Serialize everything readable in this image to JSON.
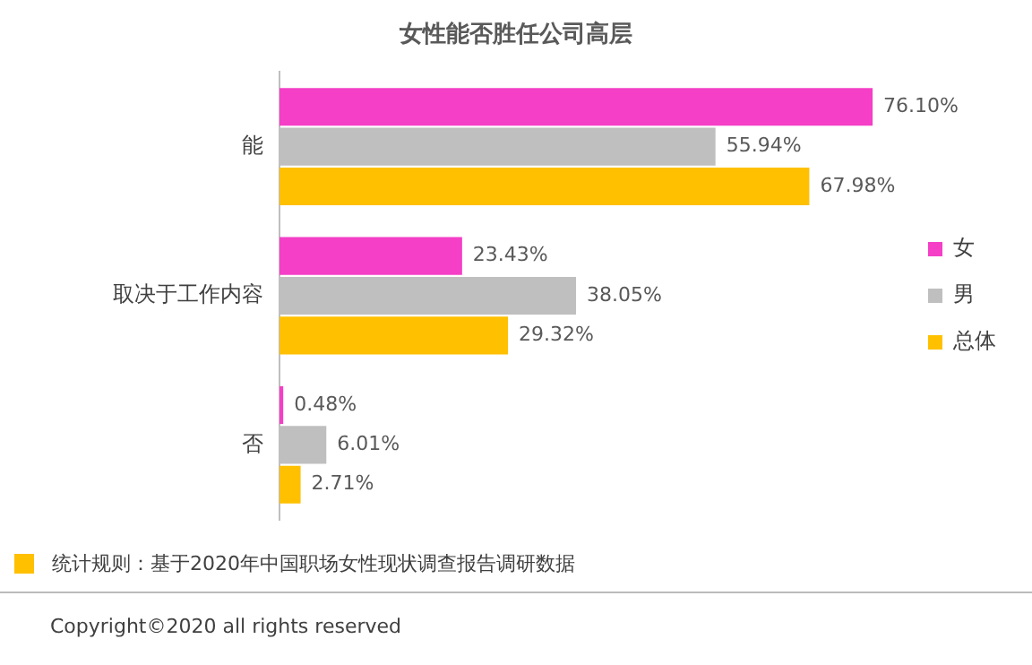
{
  "chart_data": {
    "type": "bar",
    "orientation": "horizontal",
    "title": "女性能否胜任公司高层",
    "categories": [
      "能",
      "取决于工作内容",
      "否"
    ],
    "series": [
      {
        "name": "女",
        "color": "#f43fc6",
        "values": [
          76.1,
          23.43,
          0.48
        ],
        "value_labels": [
          "76.10%",
          "23.43%",
          "0.48%"
        ]
      },
      {
        "name": "男",
        "color": "#bfbfbf",
        "values": [
          55.94,
          38.05,
          6.01
        ],
        "value_labels": [
          "55.94%",
          "38.05%",
          "6.01%"
        ]
      },
      {
        "name": "总体",
        "color": "#ffc000",
        "values": [
          67.98,
          29.32,
          2.71
        ],
        "value_labels": [
          "67.98%",
          "29.32%",
          "2.71%"
        ]
      }
    ],
    "tick_labels": "y",
    "grid": false,
    "legend": "right",
    "annotations": [
      "统计规则：基于2020年中国职场女性现状调查报告调研数据",
      "Copyright©2020 all rights reserved"
    ]
  }
}
